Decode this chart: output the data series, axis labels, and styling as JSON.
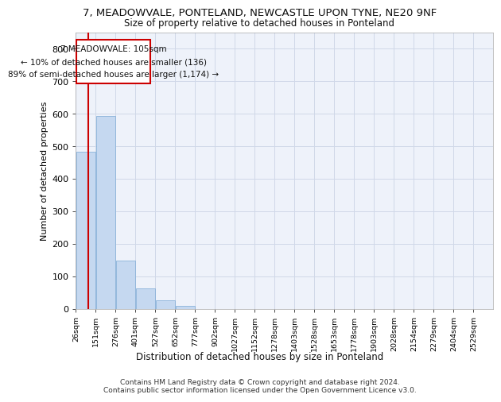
{
  "title_line1": "7, MEADOWVALE, PONTELAND, NEWCASTLE UPON TYNE, NE20 9NF",
  "title_line2": "Size of property relative to detached houses in Ponteland",
  "xlabel": "Distribution of detached houses by size in Ponteland",
  "ylabel": "Number of detached properties",
  "bar_labels": [
    "26sqm",
    "151sqm",
    "276sqm",
    "401sqm",
    "527sqm",
    "652sqm",
    "777sqm",
    "902sqm",
    "1027sqm",
    "1152sqm",
    "1278sqm",
    "1403sqm",
    "1528sqm",
    "1653sqm",
    "1778sqm",
    "1903sqm",
    "2028sqm",
    "2154sqm",
    "2279sqm",
    "2404sqm",
    "2529sqm"
  ],
  "bar_values": [
    483,
    592,
    148,
    62,
    25,
    8,
    0,
    0,
    0,
    0,
    0,
    0,
    0,
    0,
    0,
    0,
    0,
    0,
    0,
    0,
    0
  ],
  "bar_color": "#c5d8f0",
  "bar_edge_color": "#7aa8d4",
  "grid_color": "#d0d8e8",
  "bg_color": "#eef2fa",
  "vline_x": 105,
  "vline_color": "#cc0000",
  "annotation_line1": "7 MEADOWVALE: 105sqm",
  "annotation_line2": "← 10% of detached houses are smaller (136)",
  "annotation_line3": "89% of semi-detached houses are larger (1,174) →",
  "annotation_box_color": "#cc0000",
  "ylim": [
    0,
    850
  ],
  "yticks": [
    0,
    100,
    200,
    300,
    400,
    500,
    600,
    700,
    800
  ],
  "footer_line1": "Contains HM Land Registry data © Crown copyright and database right 2024.",
  "footer_line2": "Contains public sector information licensed under the Open Government Licence v3.0.",
  "bin_width": 125
}
